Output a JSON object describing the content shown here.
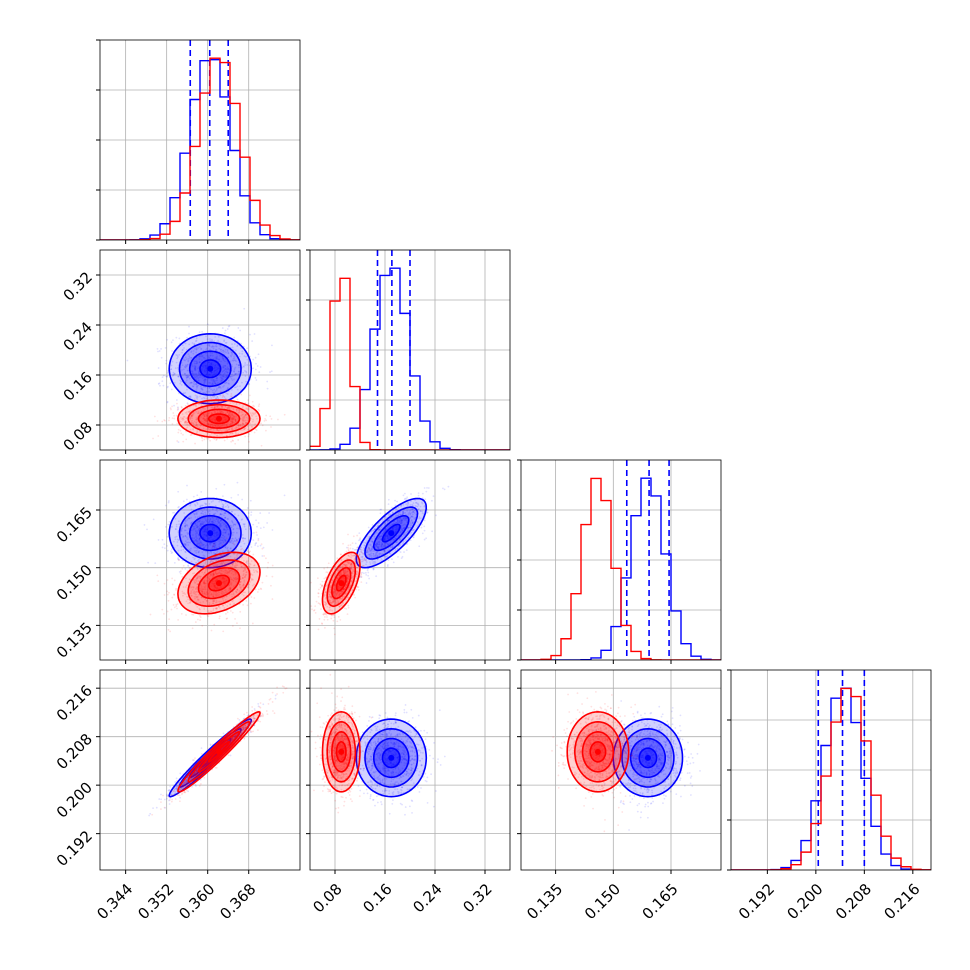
{
  "colors": {
    "blue": "#0000ff",
    "red": "#ff0000",
    "grid": "#b0b0b0",
    "axes": "#000000"
  },
  "chart_data": {
    "type": "corner",
    "grid": true,
    "parameters": [
      {
        "lim": [
          0.339,
          0.378
        ],
        "ticks": [
          {
            "v": 0.344,
            "t": "0.344"
          },
          {
            "v": 0.352,
            "t": "0.352"
          },
          {
            "v": 0.36,
            "t": "0.360"
          },
          {
            "v": 0.368,
            "t": "0.368"
          }
        ]
      },
      {
        "lim": [
          0.04,
          0.36
        ],
        "ticks": [
          {
            "v": 0.08,
            "t": "0.08"
          },
          {
            "v": 0.16,
            "t": "0.16"
          },
          {
            "v": 0.24,
            "t": "0.24"
          },
          {
            "v": 0.32,
            "t": "0.32"
          }
        ]
      },
      {
        "lim": [
          0.126,
          0.178
        ],
        "ticks": [
          {
            "v": 0.135,
            "t": "0.135"
          },
          {
            "v": 0.15,
            "t": "0.150"
          },
          {
            "v": 0.165,
            "t": "0.165"
          }
        ]
      },
      {
        "lim": [
          0.186,
          0.219
        ],
        "ticks": [
          {
            "v": 0.192,
            "t": "0.192"
          },
          {
            "v": 0.2,
            "t": "0.200"
          },
          {
            "v": 0.208,
            "t": "0.208"
          },
          {
            "v": 0.216,
            "t": "0.216"
          }
        ]
      }
    ],
    "series": [
      {
        "color": "#0000ff",
        "mean": [
          0.3605,
          0.17,
          0.159,
          0.2045
        ],
        "std": [
          0.004,
          0.028,
          0.0045,
          0.0032
        ],
        "quantiles": [
          [
            0.3566,
            0.3604,
            0.364
          ],
          [
            0.148,
            0.171,
            0.2
          ],
          [
            0.1535,
            0.1593,
            0.1645
          ],
          [
            0.2004,
            0.2044,
            0.208
          ]
        ],
        "corr": {
          "0-3": 0.97,
          "1-2": 0.75
        }
      },
      {
        "color": "#ff0000",
        "mean": [
          0.3622,
          0.09,
          0.146,
          0.2055
        ],
        "std": [
          0.004,
          0.015,
          0.004,
          0.0033
        ],
        "quantiles": [],
        "corr": {
          "0-3": 0.97,
          "1-2": 0.55,
          "0-2": 0.35
        }
      }
    ]
  }
}
